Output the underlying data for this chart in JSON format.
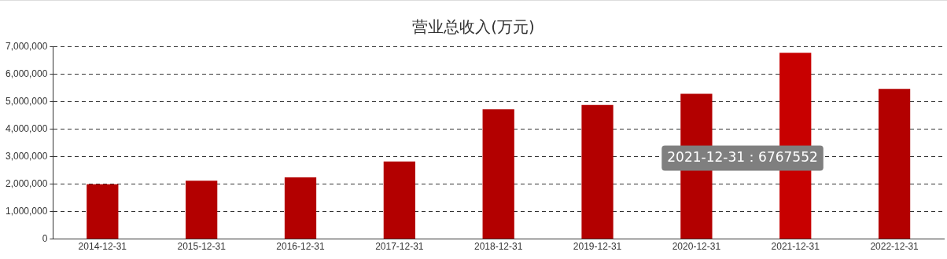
{
  "chart_data": {
    "type": "bar",
    "title": "营业总收入(万元)",
    "categories": [
      "2014-12-31",
      "2015-12-31",
      "2016-12-31",
      "2017-12-31",
      "2018-12-31",
      "2019-12-31",
      "2020-12-31",
      "2021-12-31",
      "2022-12-31"
    ],
    "values": [
      1990000,
      2120000,
      2240000,
      2820000,
      4720000,
      4870000,
      5280000,
      6767552,
      5460000
    ],
    "colors": [
      "#b30000",
      "#b30000",
      "#b30000",
      "#b30000",
      "#b30000",
      "#b30000",
      "#b30000",
      "#c80000",
      "#b30000"
    ],
    "ylim": [
      0,
      7000000
    ],
    "yticks": [
      {
        "value": 0,
        "label": "0"
      },
      {
        "value": 1000000,
        "label": "1,000,000"
      },
      {
        "value": 2000000,
        "label": "2,000,000"
      },
      {
        "value": 3000000,
        "label": "3,000,000"
      },
      {
        "value": 4000000,
        "label": "4,000,000"
      },
      {
        "value": 5000000,
        "label": "5,000,000"
      },
      {
        "value": 6000000,
        "label": "6,000,000"
      },
      {
        "value": 7000000,
        "label": "7,000,000"
      }
    ],
    "grid": "y",
    "annotations": [
      "2021-12-31：6767552"
    ]
  }
}
